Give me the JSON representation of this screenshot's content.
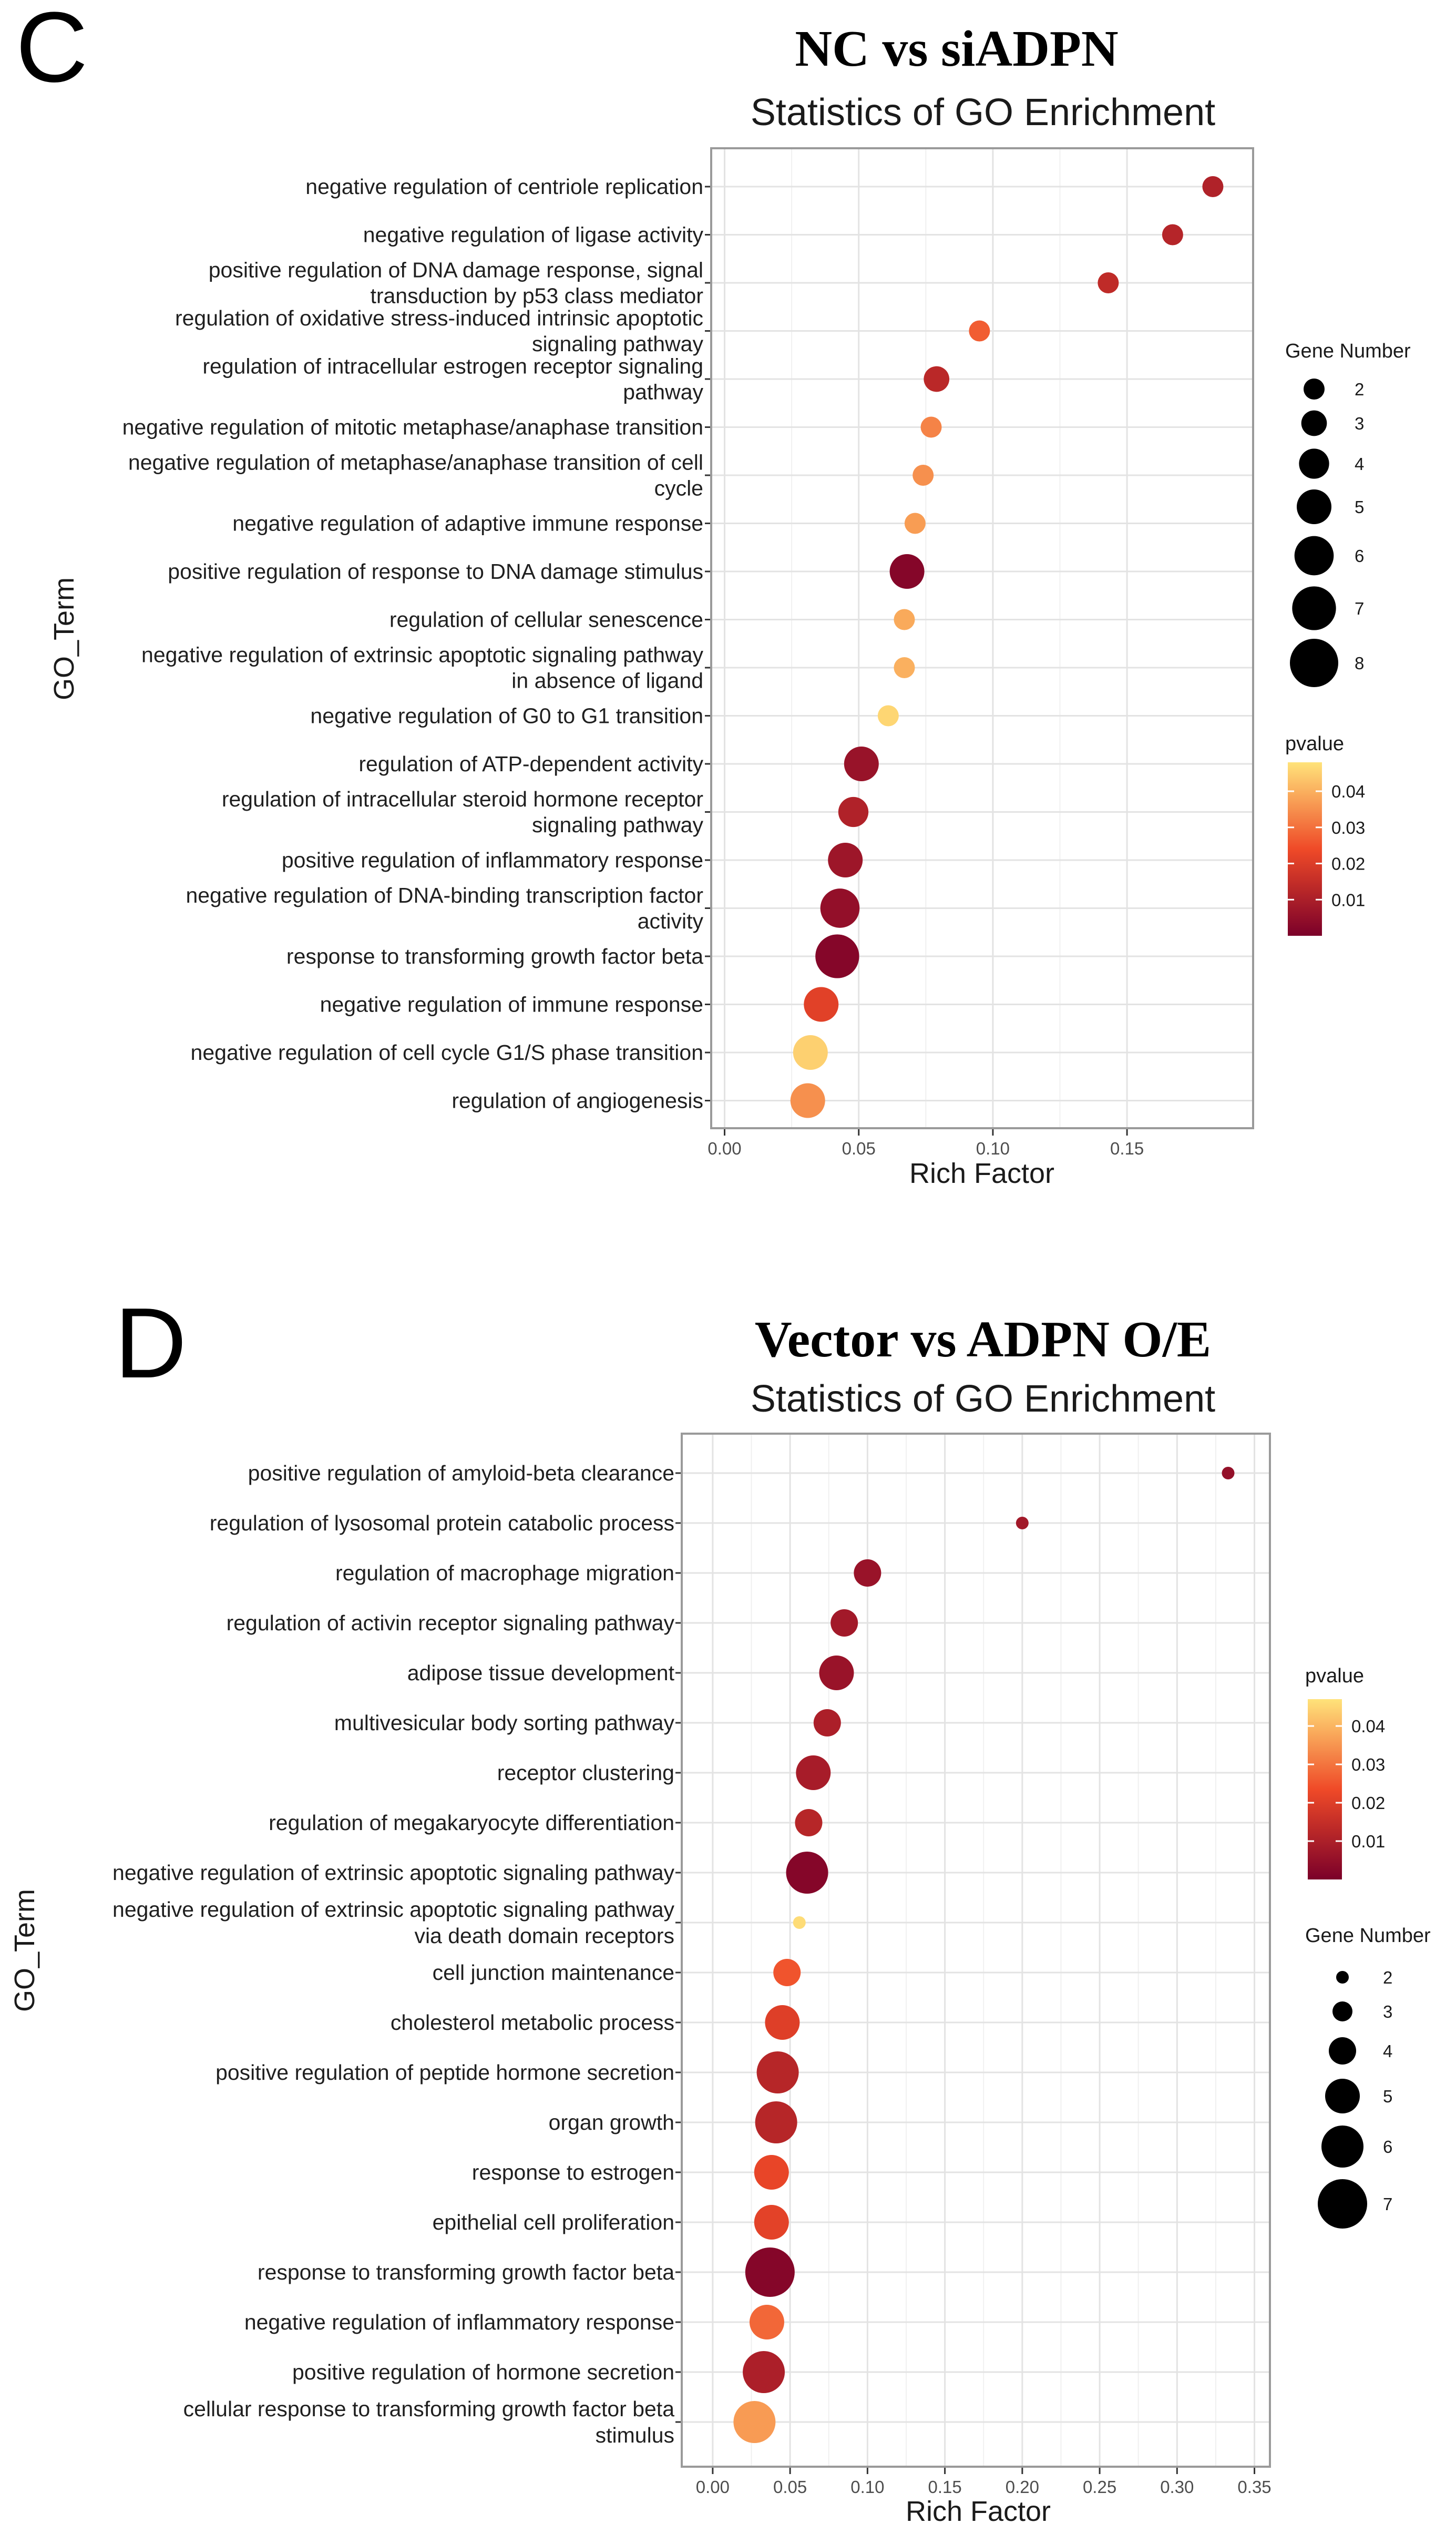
{
  "chart_data": [
    {
      "type": "scatter",
      "panel": "C",
      "title": "NC vs siADPN",
      "subtitle": "Statistics of GO Enrichment",
      "xlabel": "Rich Factor",
      "ylabel": "GO_Term",
      "xlim": [
        -0.005,
        0.197
      ],
      "xticks": [
        0.0,
        0.05,
        0.1,
        0.15
      ],
      "xtick_labels": [
        "0.00",
        "0.05",
        "0.10",
        "0.15"
      ],
      "grid": true,
      "legend_position": "right",
      "size_legend": {
        "title": "Gene Number",
        "values": [
          2,
          3,
          4,
          5,
          6,
          7,
          8
        ]
      },
      "color_legend": {
        "title": "pvalue",
        "range": [
          0.0,
          0.048
        ],
        "ticks": [
          0.01,
          0.02,
          0.03,
          0.04
        ],
        "tick_labels": [
          "0.01",
          "0.02",
          "0.03",
          "0.04"
        ],
        "low_color": "#7b0029",
        "mid_color": "#ef4a28",
        "high_color": "#ffe37a"
      },
      "terms": [
        {
          "lines": [
            "negative regulation of centriole replication"
          ],
          "rich_factor": 0.182,
          "gene_number": 2,
          "pvalue": 0.011
        },
        {
          "lines": [
            "negative regulation of ligase activity"
          ],
          "rich_factor": 0.167,
          "gene_number": 2,
          "pvalue": 0.012
        },
        {
          "lines": [
            "positive regulation of DNA damage response, signal",
            "transduction by p53 class mediator"
          ],
          "rich_factor": 0.143,
          "gene_number": 2,
          "pvalue": 0.014
        },
        {
          "lines": [
            "regulation of oxidative stress-induced intrinsic apoptotic",
            "signaling pathway"
          ],
          "rich_factor": 0.095,
          "gene_number": 2,
          "pvalue": 0.027
        },
        {
          "lines": [
            "regulation of intracellular estrogen receptor signaling",
            "pathway"
          ],
          "rich_factor": 0.079,
          "gene_number": 3,
          "pvalue": 0.013
        },
        {
          "lines": [
            "negative regulation of mitotic metaphase/anaphase transition"
          ],
          "rich_factor": 0.077,
          "gene_number": 2,
          "pvalue": 0.033
        },
        {
          "lines": [
            "negative regulation of metaphase/anaphase transition of cell",
            "cycle"
          ],
          "rich_factor": 0.074,
          "gene_number": 2,
          "pvalue": 0.035
        },
        {
          "lines": [
            "negative regulation of adaptive immune response"
          ],
          "rich_factor": 0.071,
          "gene_number": 2,
          "pvalue": 0.037
        },
        {
          "lines": [
            "positive regulation of response to DNA damage stimulus"
          ],
          "rich_factor": 0.068,
          "gene_number": 5,
          "pvalue": 0.002
        },
        {
          "lines": [
            "regulation of cellular senescence"
          ],
          "rich_factor": 0.067,
          "gene_number": 2,
          "pvalue": 0.039
        },
        {
          "lines": [
            "negative regulation of extrinsic apoptotic signaling pathway",
            "in absence of ligand"
          ],
          "rich_factor": 0.067,
          "gene_number": 2,
          "pvalue": 0.04
        },
        {
          "lines": [
            "negative regulation of G0 to G1 transition"
          ],
          "rich_factor": 0.061,
          "gene_number": 2,
          "pvalue": 0.046
        },
        {
          "lines": [
            "regulation of ATP-dependent activity"
          ],
          "rich_factor": 0.051,
          "gene_number": 5,
          "pvalue": 0.006
        },
        {
          "lines": [
            "regulation of intracellular steroid hormone receptor",
            "signaling pathway"
          ],
          "rich_factor": 0.048,
          "gene_number": 4,
          "pvalue": 0.011
        },
        {
          "lines": [
            "positive regulation of inflammatory response"
          ],
          "rich_factor": 0.045,
          "gene_number": 5,
          "pvalue": 0.007
        },
        {
          "lines": [
            "negative regulation of DNA-binding transcription factor",
            "activity"
          ],
          "rich_factor": 0.043,
          "gene_number": 6,
          "pvalue": 0.005
        },
        {
          "lines": [
            "response to transforming growth factor beta"
          ],
          "rich_factor": 0.042,
          "gene_number": 7,
          "pvalue": 0.002
        },
        {
          "lines": [
            "negative regulation of immune response"
          ],
          "rich_factor": 0.036,
          "gene_number": 5,
          "pvalue": 0.021
        },
        {
          "lines": [
            "negative regulation of cell cycle G1/S phase transition"
          ],
          "rich_factor": 0.032,
          "gene_number": 5,
          "pvalue": 0.045
        },
        {
          "lines": [
            "regulation of angiogenesis"
          ],
          "rich_factor": 0.031,
          "gene_number": 5,
          "pvalue": 0.035
        }
      ]
    },
    {
      "type": "scatter",
      "panel": "D",
      "title": "Vector vs ADPN O/E",
      "subtitle": "Statistics of GO Enrichment",
      "xlabel": "Rich Factor",
      "ylabel": "GO_Term",
      "xlim": [
        -0.02,
        0.36
      ],
      "xticks": [
        0.0,
        0.05,
        0.1,
        0.15,
        0.2,
        0.25,
        0.3,
        0.35
      ],
      "xtick_labels": [
        "0.00",
        "0.05",
        "0.10",
        "0.15",
        "0.20",
        "0.25",
        "0.30",
        "0.35"
      ],
      "grid": true,
      "legend_position": "right",
      "size_legend": {
        "title": "Gene Number",
        "values": [
          2,
          3,
          4,
          5,
          6,
          7
        ]
      },
      "color_legend": {
        "title": "pvalue",
        "range": [
          0.0,
          0.047
        ],
        "ticks": [
          0.01,
          0.02,
          0.03,
          0.04
        ],
        "tick_labels": [
          "0.01",
          "0.02",
          "0.03",
          "0.04"
        ],
        "low_color": "#7b0029",
        "mid_color": "#ef4a28",
        "high_color": "#ffe37a"
      },
      "terms": [
        {
          "lines": [
            "positive regulation of amyloid-beta clearance"
          ],
          "rich_factor": 0.333,
          "gene_number": 2,
          "pvalue": 0.005
        },
        {
          "lines": [
            "regulation of lysosomal protein catabolic process"
          ],
          "rich_factor": 0.2,
          "gene_number": 2,
          "pvalue": 0.008
        },
        {
          "lines": [
            "regulation of macrophage migration"
          ],
          "rich_factor": 0.1,
          "gene_number": 4,
          "pvalue": 0.006
        },
        {
          "lines": [
            "regulation of activin receptor signaling pathway"
          ],
          "rich_factor": 0.085,
          "gene_number": 4,
          "pvalue": 0.008
        },
        {
          "lines": [
            "adipose tissue development"
          ],
          "rich_factor": 0.08,
          "gene_number": 5,
          "pvalue": 0.006
        },
        {
          "lines": [
            "multivesicular body sorting pathway"
          ],
          "rich_factor": 0.074,
          "gene_number": 4,
          "pvalue": 0.01
        },
        {
          "lines": [
            "receptor clustering"
          ],
          "rich_factor": 0.065,
          "gene_number": 5,
          "pvalue": 0.009
        },
        {
          "lines": [
            "regulation of megakaryocyte differentiation"
          ],
          "rich_factor": 0.062,
          "gene_number": 4,
          "pvalue": 0.012
        },
        {
          "lines": [
            "negative regulation of extrinsic apoptotic signaling pathway"
          ],
          "rich_factor": 0.061,
          "gene_number": 6,
          "pvalue": 0.002
        },
        {
          "lines": [
            "negative regulation of extrinsic apoptotic signaling pathway",
            "via death domain receptors"
          ],
          "rich_factor": 0.056,
          "gene_number": 2,
          "pvalue": 0.046
        },
        {
          "lines": [
            "cell junction maintenance"
          ],
          "rich_factor": 0.048,
          "gene_number": 4,
          "pvalue": 0.025
        },
        {
          "lines": [
            "cholesterol metabolic process"
          ],
          "rich_factor": 0.045,
          "gene_number": 5,
          "pvalue": 0.02
        },
        {
          "lines": [
            "positive regulation of peptide hormone secretion"
          ],
          "rich_factor": 0.042,
          "gene_number": 6,
          "pvalue": 0.012
        },
        {
          "lines": [
            "organ growth"
          ],
          "rich_factor": 0.041,
          "gene_number": 6,
          "pvalue": 0.012
        },
        {
          "lines": [
            "response to estrogen"
          ],
          "rich_factor": 0.038,
          "gene_number": 5,
          "pvalue": 0.022
        },
        {
          "lines": [
            "epithelial cell proliferation"
          ],
          "rich_factor": 0.038,
          "gene_number": 5,
          "pvalue": 0.021
        },
        {
          "lines": [
            "response to transforming growth factor beta"
          ],
          "rich_factor": 0.037,
          "gene_number": 7,
          "pvalue": 0.002
        },
        {
          "lines": [
            "negative regulation of inflammatory response"
          ],
          "rich_factor": 0.035,
          "gene_number": 5,
          "pvalue": 0.028
        },
        {
          "lines": [
            "positive regulation of hormone secretion"
          ],
          "rich_factor": 0.033,
          "gene_number": 6,
          "pvalue": 0.01
        },
        {
          "lines": [
            "cellular response to transforming growth factor beta",
            "stimulus"
          ],
          "rich_factor": 0.027,
          "gene_number": 6,
          "pvalue": 0.036
        }
      ]
    }
  ]
}
